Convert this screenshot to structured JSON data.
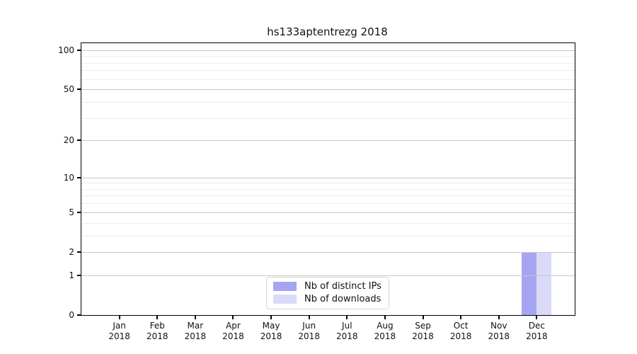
{
  "figure": {
    "title": "hs133aptentrezg 2018"
  },
  "chart_data": {
    "type": "bar",
    "title": "hs133aptentrezg 2018",
    "xlabel": "",
    "ylabel": "",
    "x_tick_labels_line1": [
      "Jan",
      "Feb",
      "Mar",
      "Apr",
      "May",
      "Jun",
      "Jul",
      "Aug",
      "Sep",
      "Oct",
      "Nov",
      "Dec"
    ],
    "x_tick_labels_line2": [
      "2018",
      "2018",
      "2018",
      "2018",
      "2018",
      "2018",
      "2018",
      "2018",
      "2018",
      "2018",
      "2018",
      "2018"
    ],
    "series": [
      {
        "name": "Nb of distinct IPs",
        "color": "#a5a5f2",
        "values": [
          0,
          0,
          0,
          0,
          0,
          0,
          0,
          0,
          0,
          0,
          0,
          2
        ]
      },
      {
        "name": "Nb of downloads",
        "color": "#dadaf8",
        "values": [
          0,
          0,
          0,
          0,
          0,
          0,
          0,
          0,
          0,
          0,
          0,
          2
        ]
      }
    ],
    "y_scale": "log1p",
    "ylim": [
      0,
      113
    ],
    "y_major_ticks": [
      0,
      1,
      2,
      5,
      10,
      20,
      50,
      100
    ],
    "y_minor_gridlines": [
      3,
      4,
      6,
      7,
      8,
      9,
      30,
      40,
      60,
      70,
      80,
      90
    ],
    "grid": "horizontal",
    "legend_position": "bottom-center",
    "colors": {
      "major_grid": "#c6c6c6",
      "minor_grid": "#ededed",
      "axis_frame": "#000000",
      "background": "#ffffff"
    }
  }
}
